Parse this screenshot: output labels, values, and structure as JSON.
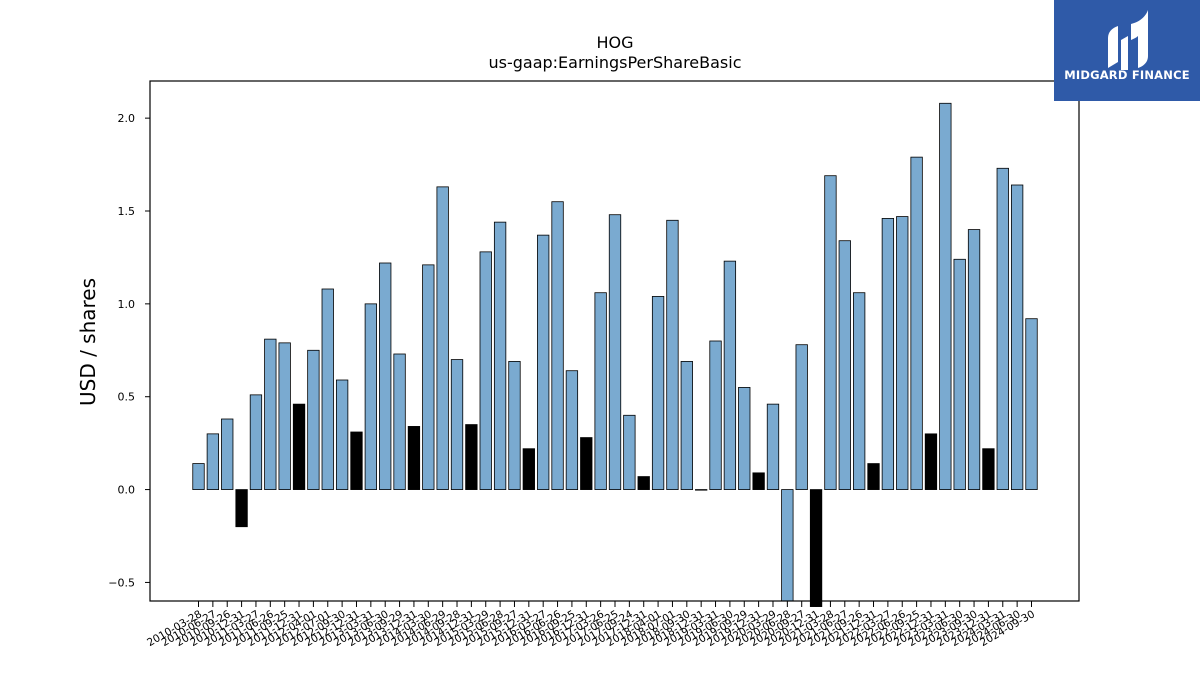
{
  "header": {
    "logo_text": "MIDGARD FINANCE"
  },
  "chart_data": {
    "type": "bar",
    "title": "HOG",
    "subtitle": "us-gaap:EarningsPerShareBasic",
    "xlabel": "",
    "ylabel": "USD / shares",
    "ylim": [
      -0.6,
      2.2
    ],
    "yticks": [
      -0.5,
      0.0,
      0.5,
      1.0,
      1.5,
      2.0
    ],
    "ytick_labels": [
      "−0.5",
      "0.0",
      "0.5",
      "1.0",
      "1.5",
      "2.0"
    ],
    "grid": false,
    "colors": {
      "positive": "#7aaad0",
      "highlight": "#000000",
      "edge": "#000000"
    },
    "categories": [
      "2010-03-28",
      "2010-06-27",
      "2010-09-26",
      "2010-12-31",
      "2011-03-27",
      "2011-06-26",
      "2011-09-25",
      "2011-12-31",
      "2012-04-01",
      "2012-07-01",
      "2012-09-30",
      "2012-12-31",
      "2013-03-31",
      "2013-06-30",
      "2013-09-29",
      "2013-12-31",
      "2014-03-30",
      "2014-06-29",
      "2014-09-28",
      "2014-12-31",
      "2015-03-29",
      "2015-06-28",
      "2015-09-27",
      "2015-12-31",
      "2016-03-27",
      "2016-06-26",
      "2016-09-25",
      "2016-12-31",
      "2017-03-26",
      "2017-06-25",
      "2017-09-24",
      "2017-12-31",
      "2018-04-01",
      "2018-07-01",
      "2018-09-30",
      "2018-12-31",
      "2019-03-31",
      "2019-06-30",
      "2019-09-29",
      "2019-12-31",
      "2020-03-29",
      "2020-06-28",
      "2020-09-27",
      "2020-12-31",
      "2021-03-28",
      "2021-06-27",
      "2021-09-26",
      "2021-12-31",
      "2022-03-27",
      "2022-06-26",
      "2022-09-25",
      "2022-12-31",
      "2023-03-31",
      "2023-06-30",
      "2023-09-30",
      "2023-12-31",
      "2024-03-31",
      "2024-06-30",
      "2024-09-30"
    ],
    "values": [
      0.14,
      0.3,
      0.38,
      -0.2,
      0.51,
      0.81,
      0.79,
      0.46,
      0.75,
      1.08,
      0.59,
      0.31,
      1.0,
      1.22,
      0.73,
      0.34,
      1.21,
      1.63,
      0.7,
      0.35,
      1.28,
      1.44,
      0.69,
      0.22,
      1.37,
      1.55,
      0.64,
      0.28,
      1.06,
      1.48,
      0.4,
      0.07,
      1.04,
      1.45,
      0.69,
      0.0,
      0.8,
      1.23,
      0.55,
      0.09,
      0.46,
      -0.6,
      0.78,
      -0.63,
      1.69,
      1.34,
      1.06,
      0.14,
      1.46,
      1.47,
      1.79,
      0.3,
      2.08,
      1.24,
      1.4,
      0.22,
      1.73,
      1.64,
      0.92
    ],
    "highlight": [
      false,
      false,
      false,
      true,
      false,
      false,
      false,
      true,
      false,
      false,
      false,
      true,
      false,
      false,
      false,
      true,
      false,
      false,
      false,
      true,
      false,
      false,
      false,
      true,
      false,
      false,
      false,
      true,
      false,
      false,
      false,
      true,
      false,
      false,
      false,
      true,
      false,
      false,
      false,
      true,
      false,
      false,
      false,
      true,
      false,
      false,
      false,
      true,
      false,
      false,
      false,
      true,
      false,
      false,
      false,
      true,
      false,
      false,
      false
    ]
  }
}
